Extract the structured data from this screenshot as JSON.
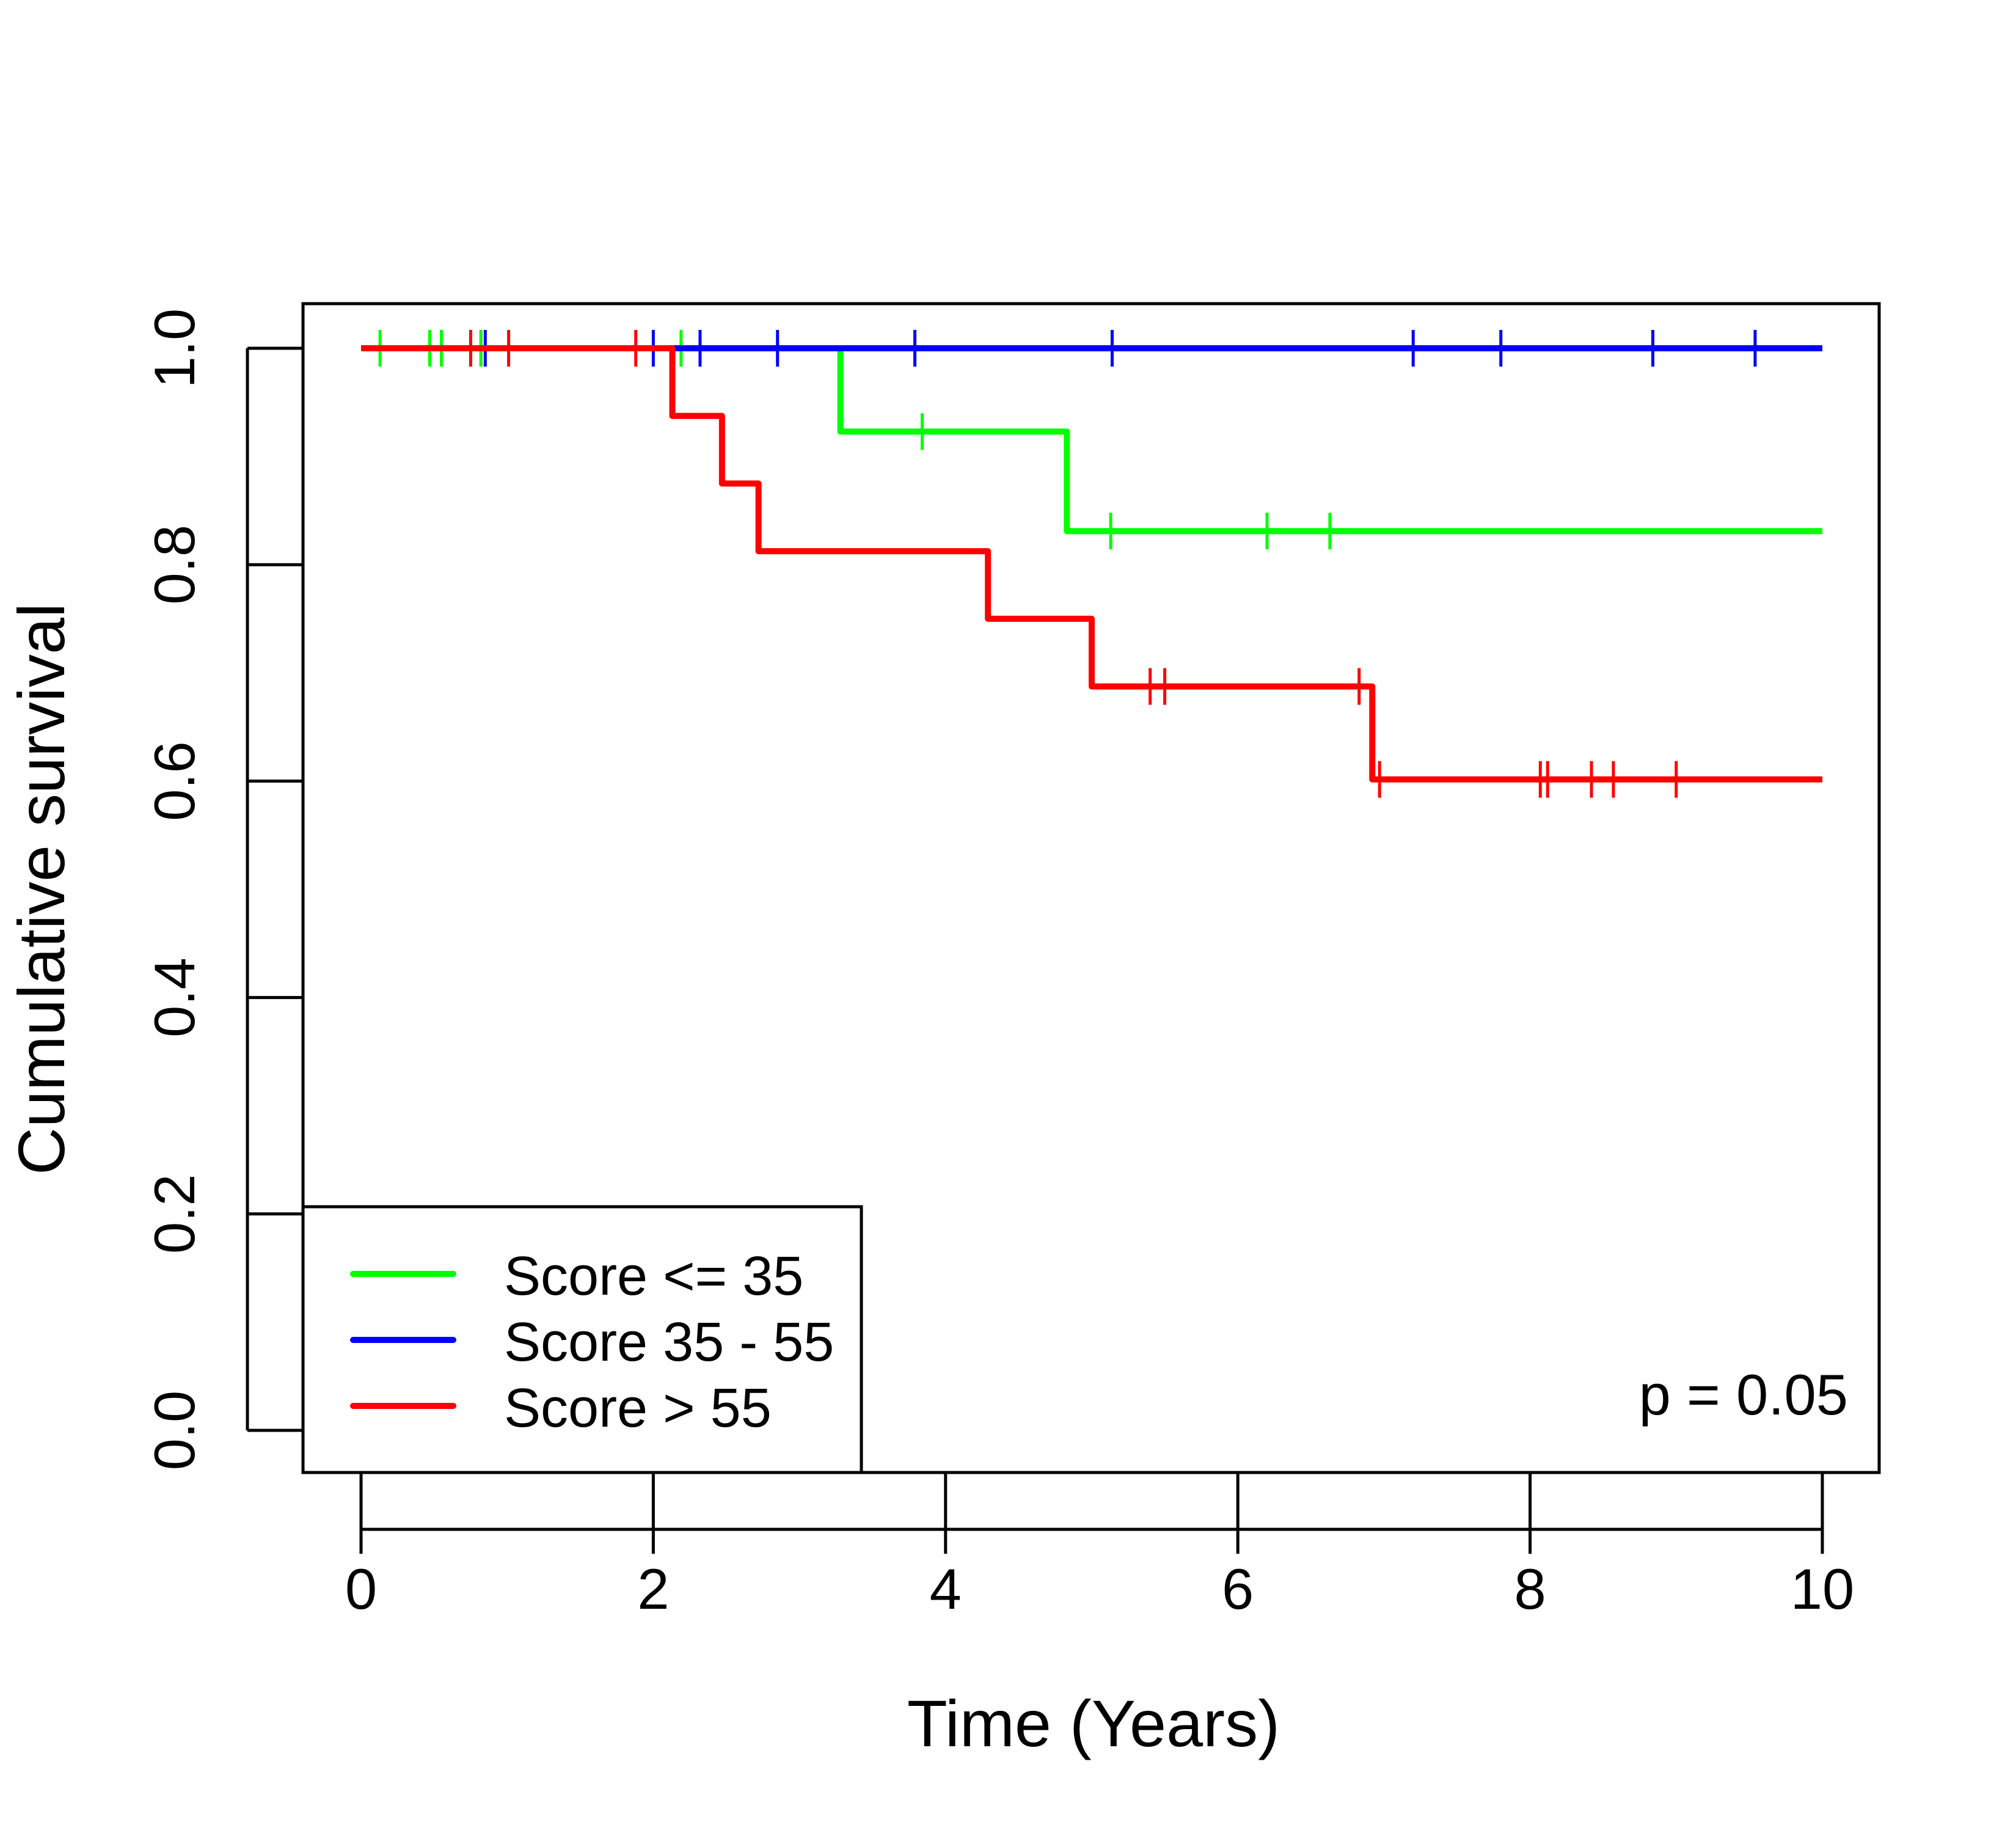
{
  "chart_data": {
    "type": "line",
    "subtype": "kaplan-meier step",
    "title": "",
    "xlabel": "Time (Years)",
    "ylabel": "Cumulative survival",
    "xlim": [
      0,
      10
    ],
    "ylim": [
      0,
      1
    ],
    "xticks": [
      0,
      2,
      4,
      6,
      8,
      10
    ],
    "xtick_labels": [
      "0",
      "2",
      "4",
      "6",
      "8",
      "10"
    ],
    "yticks": [
      0,
      0.2,
      0.4,
      0.6,
      0.8,
      1.0
    ],
    "ytick_labels": [
      "0.0",
      "0.2",
      "0.4",
      "0.6",
      "0.8",
      "1.0"
    ],
    "grid": false,
    "legend_position": "bottom-left",
    "annotation": "p = 0.05",
    "series": [
      {
        "name": "Score <= 35",
        "color": "#00ff00",
        "end_time": 10,
        "steps": [
          [
            0.0,
            1.0
          ],
          [
            3.28,
            0.923
          ],
          [
            4.83,
            0.831
          ]
        ],
        "censored": [
          [
            0.13,
            1.0
          ],
          [
            0.47,
            1.0
          ],
          [
            0.55,
            1.0
          ],
          [
            0.82,
            1.0
          ],
          [
            2.19,
            1.0
          ],
          [
            3.28,
            0.962
          ],
          [
            3.84,
            0.923
          ],
          [
            4.83,
            0.877
          ],
          [
            5.13,
            0.831
          ],
          [
            6.2,
            0.831
          ],
          [
            6.63,
            0.831
          ]
        ]
      },
      {
        "name": "Score 35 - 55",
        "color": "#0000ff",
        "end_time": 10,
        "steps": [
          [
            0.85,
            1.0
          ]
        ],
        "censored": [
          [
            0.85,
            1.0
          ],
          [
            2.0,
            1.0
          ],
          [
            2.32,
            1.0
          ],
          [
            2.85,
            1.0
          ],
          [
            3.79,
            1.0
          ],
          [
            5.14,
            1.0
          ],
          [
            7.2,
            1.0
          ],
          [
            7.8,
            1.0
          ],
          [
            8.84,
            1.0
          ],
          [
            9.54,
            1.0
          ]
        ]
      },
      {
        "name": "Score > 55",
        "color": "#ff0000",
        "end_time": 10,
        "steps": [
          [
            0.0,
            1.0
          ],
          [
            2.13,
            0.9375
          ],
          [
            2.47,
            0.875
          ],
          [
            2.72,
            0.8125
          ],
          [
            4.29,
            0.75
          ],
          [
            5.0,
            0.6875
          ],
          [
            6.92,
            0.6016
          ]
        ],
        "censored": [
          [
            0.75,
            1.0
          ],
          [
            1.01,
            1.0
          ],
          [
            1.88,
            1.0
          ],
          [
            5.4,
            0.6875
          ],
          [
            5.5,
            0.6875
          ],
          [
            6.83,
            0.6875
          ],
          [
            6.97,
            0.6016
          ],
          [
            8.07,
            0.6016
          ],
          [
            8.12,
            0.6016
          ],
          [
            8.42,
            0.6016
          ],
          [
            8.57,
            0.6016
          ],
          [
            9.0,
            0.6016
          ]
        ]
      }
    ]
  }
}
